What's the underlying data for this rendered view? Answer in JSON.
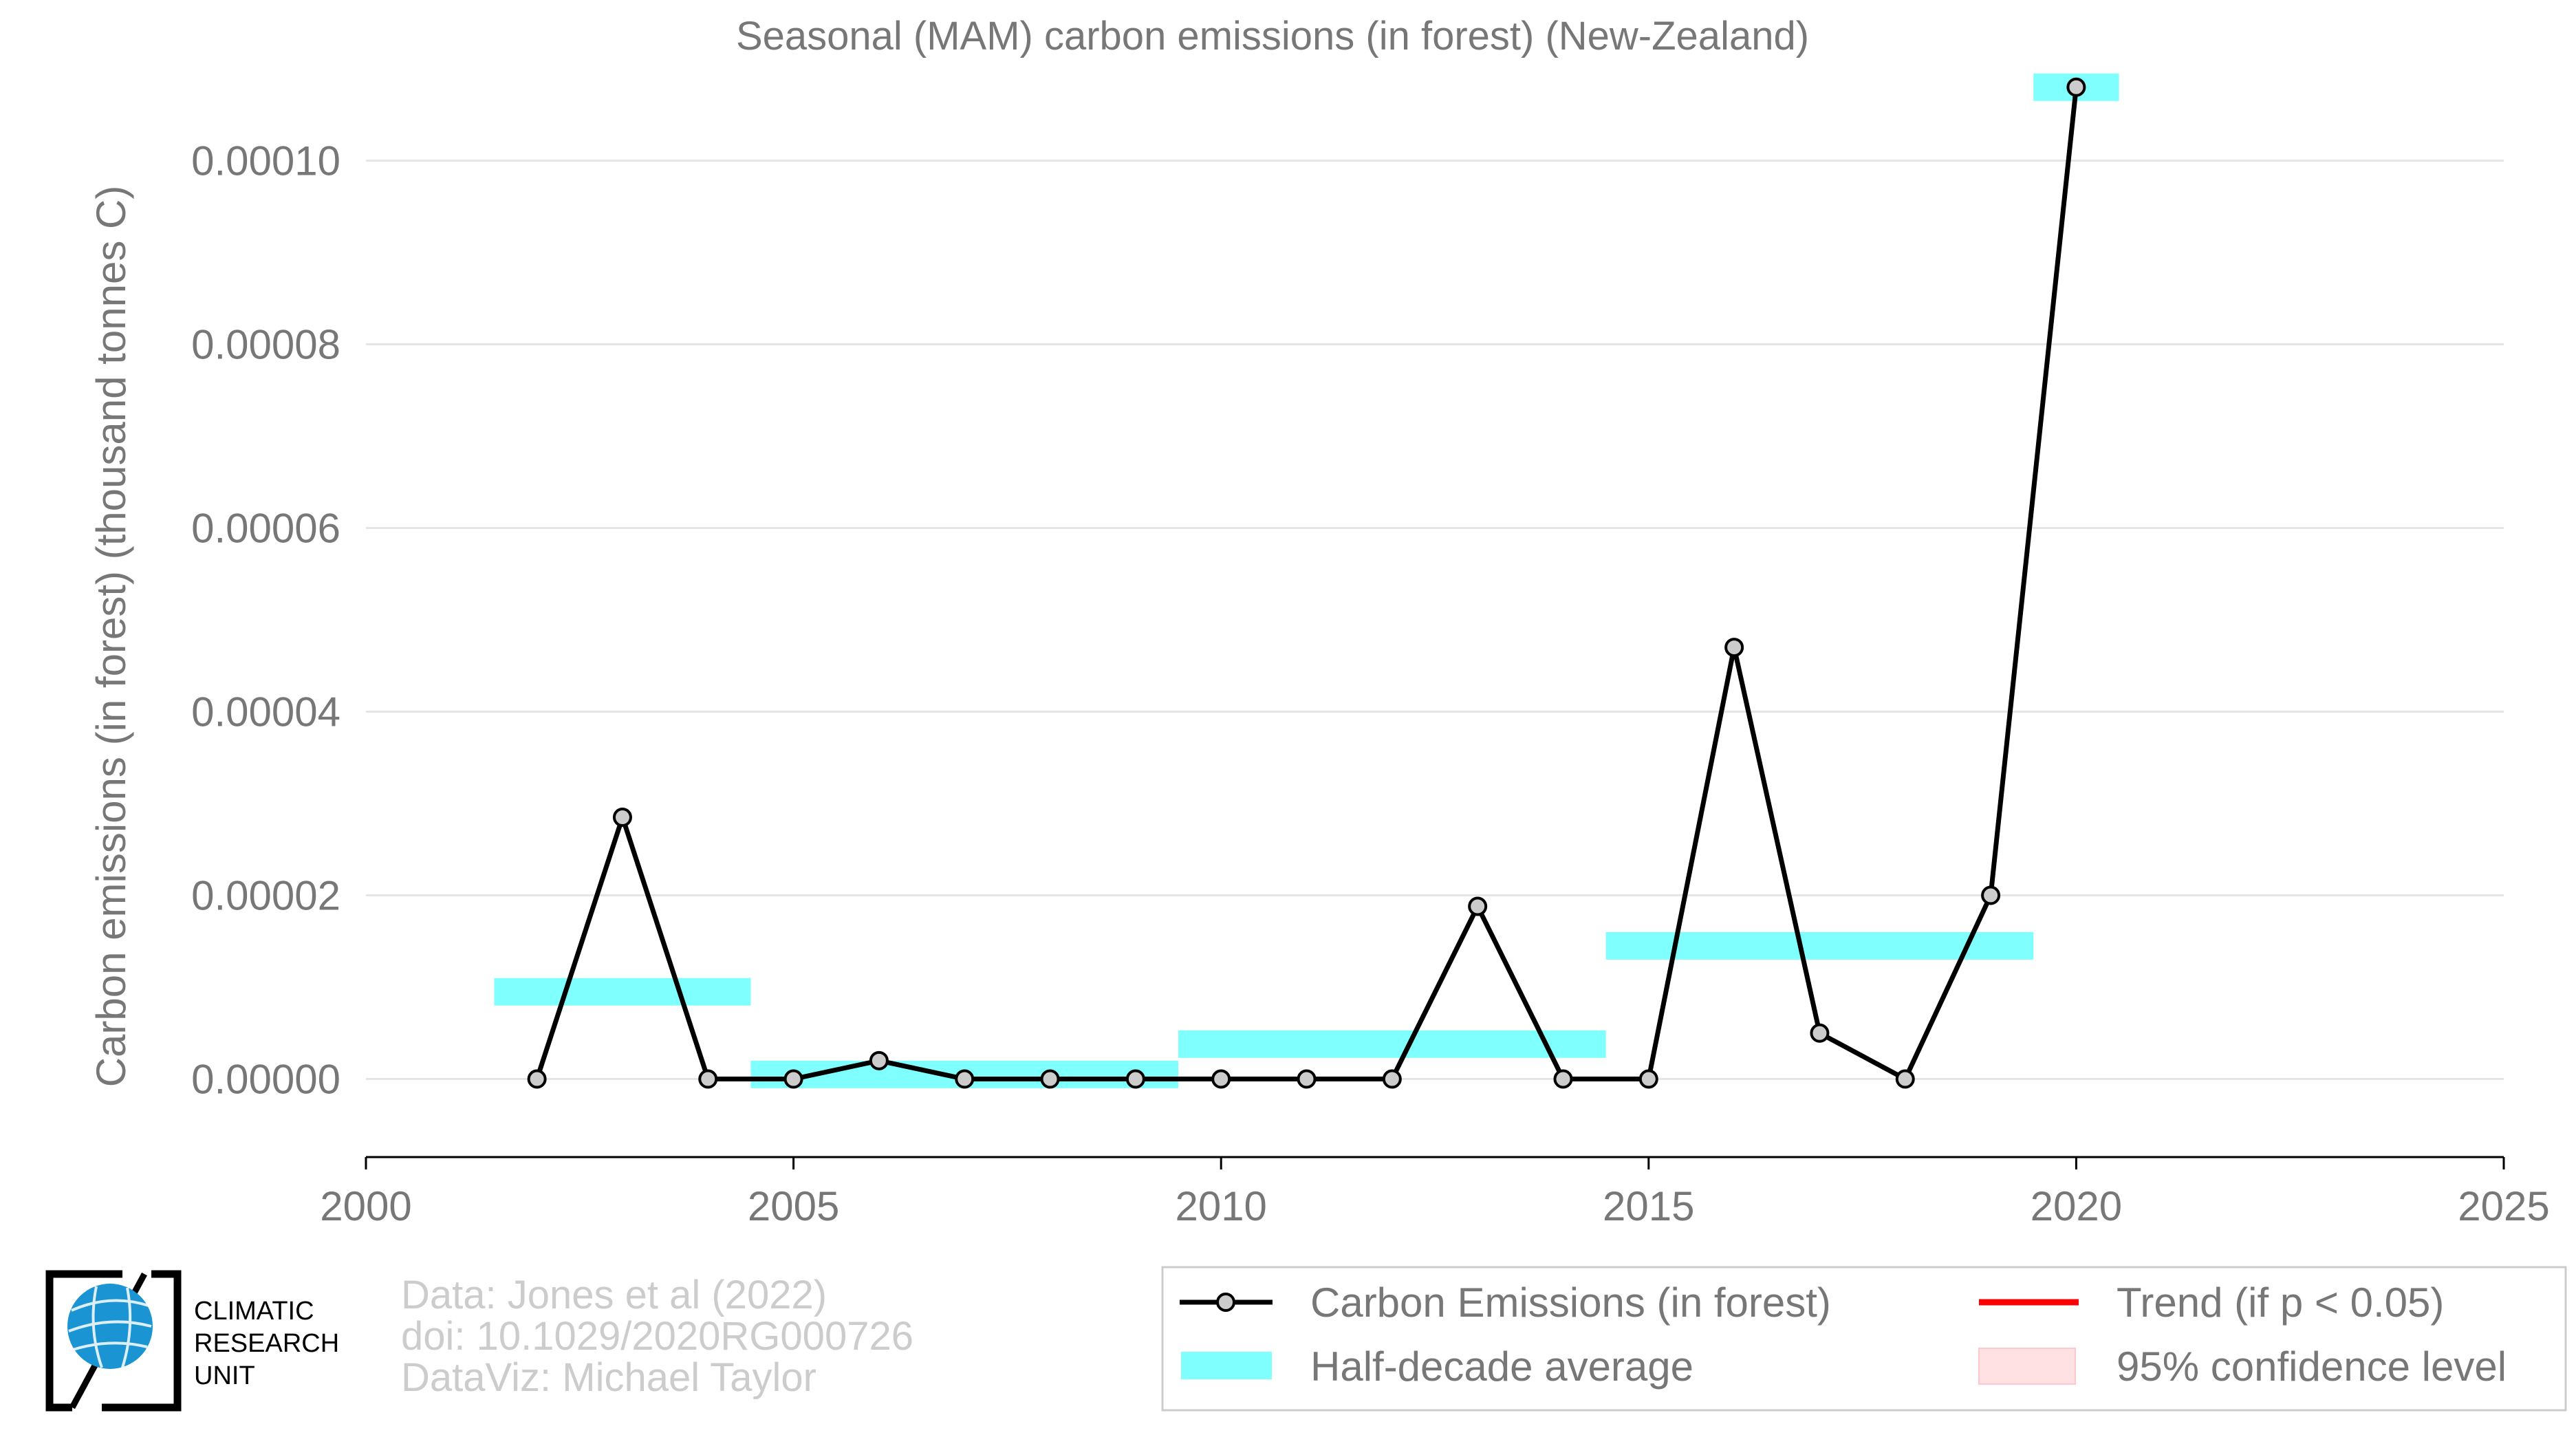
{
  "chart_data": {
    "type": "line",
    "title": "Seasonal (MAM) carbon emissions (in forest) (New-Zealand)",
    "xlabel": "",
    "ylabel": "Carbon emissions (in forest) (thousand tonnes C)",
    "xlim": [
      2000,
      2025
    ],
    "ylim": [
      -8.5e-06,
      0.000113
    ],
    "x_ticks": [
      2000,
      2005,
      2010,
      2015,
      2020,
      2025
    ],
    "x_tick_labels": [
      "2000",
      "2005",
      "2010",
      "2015",
      "2020",
      "2025"
    ],
    "y_ticks": [
      0,
      2e-05,
      4e-05,
      6e-05,
      8e-05,
      0.0001
    ],
    "y_tick_labels": [
      "0.00000",
      "0.00002",
      "0.00004",
      "0.00006",
      "0.00008",
      "0.00010"
    ],
    "grid": true,
    "legend_position": "bottom-right",
    "series": [
      {
        "name": "Carbon Emissions (in forest)",
        "color": "#000000",
        "x": [
          2002,
          2003,
          2004,
          2005,
          2006,
          2007,
          2008,
          2009,
          2010,
          2011,
          2012,
          2013,
          2014,
          2015,
          2016,
          2017,
          2018,
          2019,
          2020
        ],
        "y": [
          0.0,
          2.85e-05,
          0.0,
          0.0,
          2e-06,
          0.0,
          0.0,
          0.0,
          0.0,
          0.0,
          0.0,
          1.88e-05,
          0.0,
          0.0,
          4.7e-05,
          5e-06,
          0.0,
          2e-05,
          0.000108
        ]
      }
    ],
    "half_decade_average": {
      "name": "Half-decade average",
      "color": "#80ffff",
      "segments": [
        {
          "x": [
            2001.5,
            2004.5
          ],
          "y": 9.5e-06
        },
        {
          "x": [
            2004.5,
            2009.5
          ],
          "y": 5e-07
        },
        {
          "x": [
            2009.5,
            2014.5
          ],
          "y": 3.8e-06
        },
        {
          "x": [
            2014.5,
            2019.5
          ],
          "y": 1.45e-05
        },
        {
          "x": [
            2019.5,
            2020.5
          ],
          "y": 0.000108
        }
      ]
    },
    "legend": [
      {
        "label": "Carbon Emissions (in forest)",
        "kind": "line-marker",
        "color": "#000000"
      },
      {
        "label": "Trend (if p < 0.05)",
        "kind": "line",
        "color": "#ff0000"
      },
      {
        "label": "Half-decade average",
        "kind": "band",
        "color": "#80ffff"
      },
      {
        "label": "95% confidence level",
        "kind": "patch",
        "color": "#ffe0e3"
      }
    ]
  },
  "credits": {
    "line1": "Data: Jones et al (2022)",
    "line2": "doi: 10.1029/2020RG000726",
    "line3": "DataViz: Michael Taylor"
  },
  "logo": {
    "line1": "CLIMATIC",
    "line2": "RESEARCH",
    "line3": "UNIT"
  }
}
